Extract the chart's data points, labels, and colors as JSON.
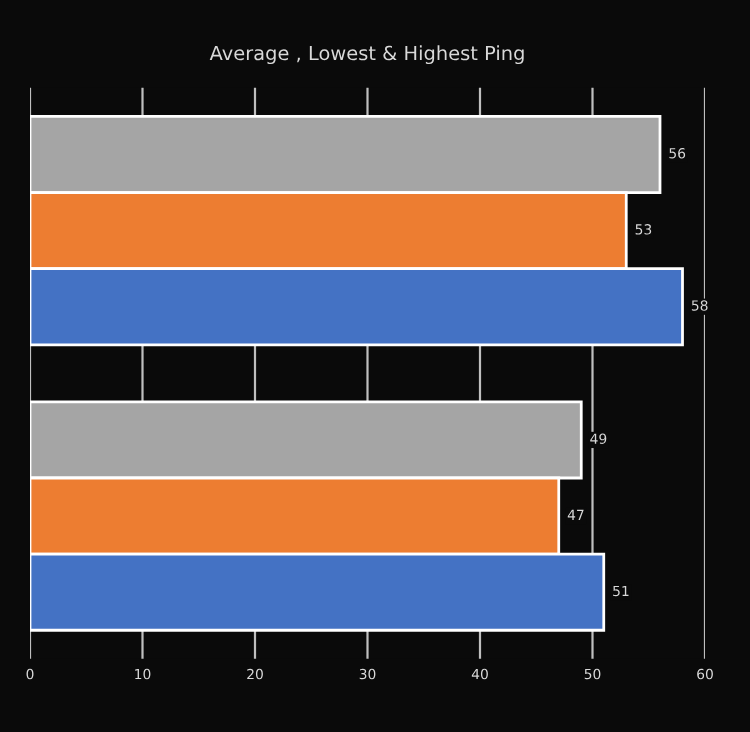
{
  "chart_data": {
    "type": "bar",
    "orientation": "horizontal",
    "title": "Average , Lowest & Highest Ping",
    "categories": [
      null,
      null
    ],
    "series": [
      {
        "color": "#a5a5a5",
        "values": [
          56,
          49
        ]
      },
      {
        "color": "#ed7d31",
        "values": [
          53,
          47
        ]
      },
      {
        "color": "#4472c4",
        "values": [
          58,
          51
        ]
      }
    ],
    "xlim": [
      0,
      60
    ],
    "xticks": [
      0,
      10,
      20,
      30,
      40,
      50,
      60
    ],
    "grid": "x",
    "data_labels": true
  }
}
